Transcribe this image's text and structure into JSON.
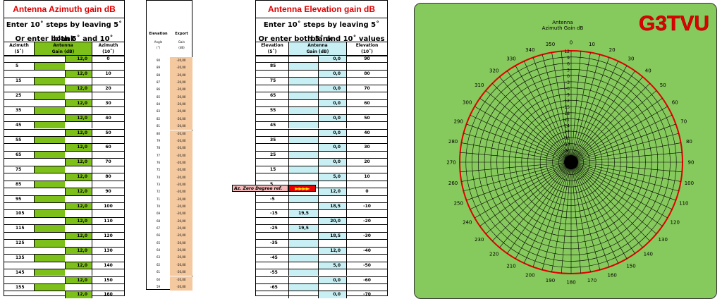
{
  "azimuth_table": {
    "title": "Antenna Azimuth gain dB",
    "instruction_1": "Enter 10˚ steps by leaving 5˚ blank",
    "instruction_2": "Or enter both 5˚ and 10˚ values",
    "col_left": "Azimuth",
    "col_left_unit": "(5˚)",
    "col_mid": "Antenna",
    "col_mid_unit": "Gain (dB)",
    "col_right": "Azimuth",
    "col_right_unit": "(10˚)",
    "rows": [
      {
        "a5": "",
        "gain": "12,0",
        "a10": "0"
      },
      {
        "a5": "5",
        "gain": "",
        "a10": ""
      },
      {
        "a5": "",
        "gain": "12,0",
        "a10": "10"
      },
      {
        "a5": "15",
        "gain": "",
        "a10": ""
      },
      {
        "a5": "",
        "gain": "12,0",
        "a10": "20"
      },
      {
        "a5": "25",
        "gain": "",
        "a10": ""
      },
      {
        "a5": "",
        "gain": "12,0",
        "a10": "30"
      },
      {
        "a5": "35",
        "gain": "",
        "a10": ""
      },
      {
        "a5": "",
        "gain": "12,0",
        "a10": "40"
      },
      {
        "a5": "45",
        "gain": "",
        "a10": ""
      },
      {
        "a5": "",
        "gain": "12,0",
        "a10": "50"
      },
      {
        "a5": "55",
        "gain": "",
        "a10": ""
      },
      {
        "a5": "",
        "gain": "12,0",
        "a10": "60"
      },
      {
        "a5": "65",
        "gain": "",
        "a10": ""
      },
      {
        "a5": "",
        "gain": "12,0",
        "a10": "70"
      },
      {
        "a5": "75",
        "gain": "",
        "a10": ""
      },
      {
        "a5": "",
        "gain": "12,0",
        "a10": "80"
      },
      {
        "a5": "85",
        "gain": "",
        "a10": ""
      },
      {
        "a5": "",
        "gain": "12,0",
        "a10": "90"
      },
      {
        "a5": "95",
        "gain": "",
        "a10": ""
      },
      {
        "a5": "",
        "gain": "12,0",
        "a10": "100"
      },
      {
        "a5": "105",
        "gain": "",
        "a10": ""
      },
      {
        "a5": "",
        "gain": "12,0",
        "a10": "110"
      },
      {
        "a5": "115",
        "gain": "",
        "a10": ""
      },
      {
        "a5": "",
        "gain": "12,0",
        "a10": "120"
      },
      {
        "a5": "125",
        "gain": "",
        "a10": ""
      },
      {
        "a5": "",
        "gain": "12,0",
        "a10": "130"
      },
      {
        "a5": "135",
        "gain": "",
        "a10": ""
      },
      {
        "a5": "",
        "gain": "12,0",
        "a10": "140"
      },
      {
        "a5": "145",
        "gain": "",
        "a10": ""
      },
      {
        "a5": "",
        "gain": "12,0",
        "a10": "150"
      },
      {
        "a5": "155",
        "gain": "",
        "a10": ""
      },
      {
        "a5": "",
        "gain": "12,0",
        "a10": "160"
      }
    ]
  },
  "export_table": {
    "col_left": "Elevation",
    "col_left_sub1": "Angle",
    "col_left_sub2": "(˚)",
    "col_right": "Export",
    "col_right_sub1": "Gain",
    "col_right_sub2": "(dB)",
    "rows": [
      {
        "angle": "90",
        "gain": "-20,00"
      },
      {
        "angle": "89",
        "gain": "-20,00"
      },
      {
        "angle": "88",
        "gain": "-20,00"
      },
      {
        "angle": "87",
        "gain": "-20,00"
      },
      {
        "angle": "86",
        "gain": "-20,00"
      },
      {
        "angle": "85",
        "gain": "-20,00"
      },
      {
        "angle": "84",
        "gain": "-20,00"
      },
      {
        "angle": "83",
        "gain": "-20,00"
      },
      {
        "angle": "82",
        "gain": "-20,00"
      },
      {
        "angle": "81",
        "gain": "-20,00"
      },
      {
        "angle": "80",
        "gain": "-20,00"
      },
      {
        "angle": "79",
        "gain": "-20,00"
      },
      {
        "angle": "78",
        "gain": "-20,00"
      },
      {
        "angle": "77",
        "gain": "-20,00"
      },
      {
        "angle": "76",
        "gain": "-20,00"
      },
      {
        "angle": "75",
        "gain": "-20,00"
      },
      {
        "angle": "74",
        "gain": "-20,00"
      },
      {
        "angle": "73",
        "gain": "-20,00"
      },
      {
        "angle": "72",
        "gain": "-20,00"
      },
      {
        "angle": "71",
        "gain": "-20,00"
      },
      {
        "angle": "70",
        "gain": "-20,00"
      },
      {
        "angle": "69",
        "gain": "-20,00"
      },
      {
        "angle": "68",
        "gain": "-20,00"
      },
      {
        "angle": "67",
        "gain": "-20,00"
      },
      {
        "angle": "66",
        "gain": "-20,00"
      },
      {
        "angle": "65",
        "gain": "-20,00"
      },
      {
        "angle": "64",
        "gain": "-20,00"
      },
      {
        "angle": "63",
        "gain": "-20,00"
      },
      {
        "angle": "62",
        "gain": "-20,00"
      },
      {
        "angle": "61",
        "gain": "-20,00"
      },
      {
        "angle": "60",
        "gain": "-20,00"
      },
      {
        "angle": "59",
        "gain": "-20,00"
      }
    ]
  },
  "elevation_table": {
    "title": "Antenna Elevation gain dB",
    "instruction_1": "Enter 10˚ steps by leaving 5˚ blank",
    "instruction_2": "Or enter both 5˚ and 10˚ values",
    "col_left": "Elevation",
    "col_left_unit": "(5˚)",
    "col_mid": "Antenna",
    "col_mid_unit": "Gain (dB)",
    "col_right": "Elevation",
    "col_right_unit": "(10˚)",
    "rows": [
      {
        "e5": "",
        "left": "",
        "gain": "0,0",
        "e10": "90"
      },
      {
        "e5": "85",
        "left": "",
        "gain": "",
        "e10": ""
      },
      {
        "e5": "",
        "left": "",
        "gain": "0,0",
        "e10": "80"
      },
      {
        "e5": "75",
        "left": "",
        "gain": "",
        "e10": ""
      },
      {
        "e5": "",
        "left": "",
        "gain": "0,0",
        "e10": "70"
      },
      {
        "e5": "65",
        "left": "",
        "gain": "",
        "e10": ""
      },
      {
        "e5": "",
        "left": "",
        "gain": "0,0",
        "e10": "60"
      },
      {
        "e5": "55",
        "left": "",
        "gain": "",
        "e10": ""
      },
      {
        "e5": "",
        "left": "",
        "gain": "0,0",
        "e10": "50"
      },
      {
        "e5": "45",
        "left": "",
        "gain": "",
        "e10": ""
      },
      {
        "e5": "",
        "left": "",
        "gain": "0,0",
        "e10": "40"
      },
      {
        "e5": "35",
        "left": "",
        "gain": "",
        "e10": ""
      },
      {
        "e5": "",
        "left": "",
        "gain": "0,0",
        "e10": "30"
      },
      {
        "e5": "25",
        "left": "",
        "gain": "",
        "e10": ""
      },
      {
        "e5": "",
        "left": "",
        "gain": "0,0",
        "e10": "20"
      },
      {
        "e5": "15",
        "left": "",
        "gain": "",
        "e10": ""
      },
      {
        "e5": "",
        "left": "",
        "gain": "5,0",
        "e10": "10"
      },
      {
        "e5": "5",
        "left": "",
        "gain": "",
        "e10": ""
      },
      {
        "e5": "",
        "left": "",
        "gain": "12,0",
        "e10": "0"
      },
      {
        "e5": "-5",
        "left": "",
        "gain": "",
        "e10": ""
      },
      {
        "e5": "",
        "left": "",
        "gain": "18,5",
        "e10": "-10"
      },
      {
        "e5": "-15",
        "left": "19,5",
        "gain": "",
        "e10": ""
      },
      {
        "e5": "",
        "left": "",
        "gain": "20,0",
        "e10": "-20"
      },
      {
        "e5": "-25",
        "left": "19,5",
        "gain": "",
        "e10": ""
      },
      {
        "e5": "",
        "left": "",
        "gain": "18,5",
        "e10": "-30"
      },
      {
        "e5": "-35",
        "left": "",
        "gain": "",
        "e10": ""
      },
      {
        "e5": "",
        "left": "",
        "gain": "12,0",
        "e10": "-40"
      },
      {
        "e5": "-45",
        "left": "",
        "gain": "",
        "e10": ""
      },
      {
        "e5": "",
        "left": "",
        "gain": "5,0",
        "e10": "-50"
      },
      {
        "e5": "-55",
        "left": "",
        "gain": "",
        "e10": ""
      },
      {
        "e5": "",
        "left": "",
        "gain": "0,0",
        "e10": "-60"
      },
      {
        "e5": "-65",
        "left": "",
        "gain": "",
        "e10": ""
      },
      {
        "e5": "",
        "left": "",
        "gain": "0,0",
        "e10": "-70"
      }
    ]
  },
  "marker": {
    "label": "Az. Zero Degree ref.",
    "arrows": "►►►►",
    "label_color": "#f4b8b8",
    "arrow_bg": "#e60000",
    "arrow_color": "#ffe600"
  },
  "polar_chart": {
    "logo": "G3TVU",
    "title_line1": "Antenna",
    "title_line2": "Azimuth Gain dB",
    "panel_color": "#86c95c",
    "outline_color": "#e00000",
    "radial_ticks": [
      "12",
      "9",
      "6",
      "3",
      "0",
      "-3",
      "-6",
      "-9",
      "-12",
      "-15",
      "-18",
      "-21",
      "-24",
      "-27",
      "-30",
      "-33",
      "-36",
      "-39",
      "-42"
    ],
    "angle_labels": [
      "0",
      "10",
      "20",
      "30",
      "40",
      "50",
      "60",
      "70",
      "80",
      "90",
      "100",
      "110",
      "120",
      "130",
      "140",
      "150",
      "160",
      "170",
      "180",
      "190",
      "200",
      "210",
      "220",
      "230",
      "240",
      "250",
      "260",
      "270",
      "280",
      "290",
      "300",
      "310",
      "320",
      "330",
      "340",
      "350"
    ]
  },
  "colors": {
    "title_red": "#e00000",
    "gain_green": "#7ec01a",
    "elev_cyan": "#c8f0f4",
    "export_orange": "#f5c9a0"
  }
}
